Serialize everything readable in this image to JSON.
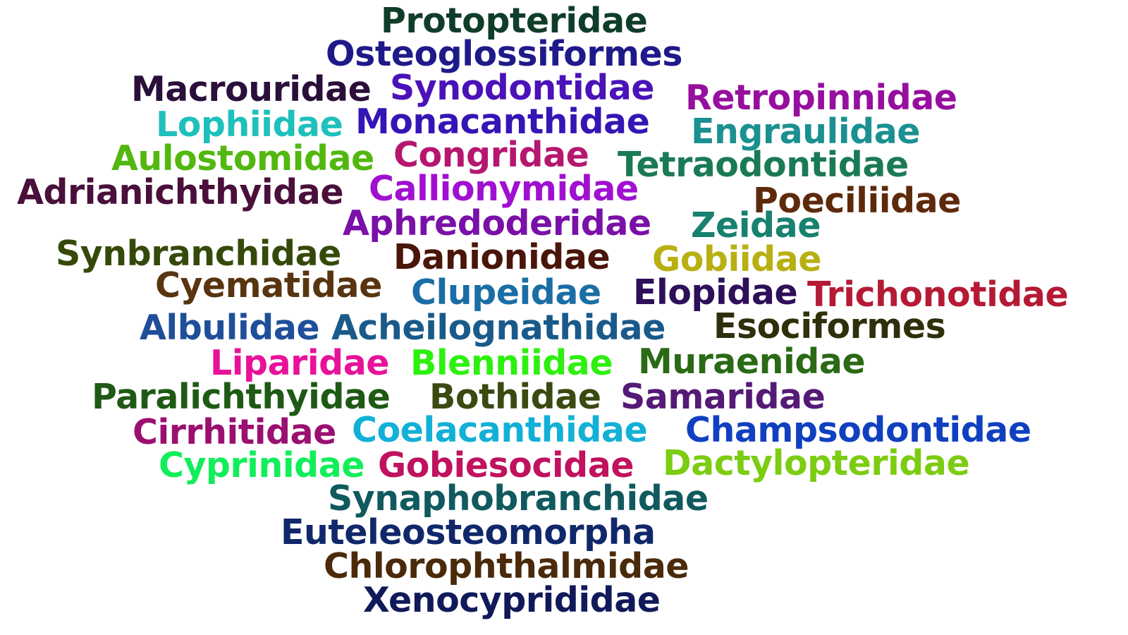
{
  "words": [
    {
      "text": "Protopteridae",
      "color": "#0f3d2a"
    },
    {
      "text": "Osteoglossiformes",
      "color": "#1f1a8a"
    },
    {
      "text": "Macrouridae",
      "color": "#2a0f3a"
    },
    {
      "text": "Synodontidae",
      "color": "#4a12b8"
    },
    {
      "text": "Retropinnidae",
      "color": "#960f9e"
    },
    {
      "text": "Lophiidae",
      "color": "#1ec0bc"
    },
    {
      "text": "Monacanthidae",
      "color": "#3515b5"
    },
    {
      "text": "Engraulidae",
      "color": "#1b9090"
    },
    {
      "text": "Aulostomidae",
      "color": "#52b80f"
    },
    {
      "text": "Congridae",
      "color": "#b5176f"
    },
    {
      "text": "Tetraodontidae",
      "color": "#1a7a55"
    },
    {
      "text": "Adrianichthyidae",
      "color": "#4a0f3a"
    },
    {
      "text": "Callionymidae",
      "color": "#a010d0"
    },
    {
      "text": "Poeciliidae",
      "color": "#5e2a0c"
    },
    {
      "text": "Aphredoderidae",
      "color": "#7a10a8"
    },
    {
      "text": "Zeidae",
      "color": "#18806f"
    },
    {
      "text": "Synbranchidae",
      "color": "#354a0a"
    },
    {
      "text": "Danionidae",
      "color": "#4a150a"
    },
    {
      "text": "Gobiidae",
      "color": "#b8b012"
    },
    {
      "text": "Cyematidae",
      "color": "#583510"
    },
    {
      "text": "Clupeidae",
      "color": "#1a6ea5"
    },
    {
      "text": "Elopidae",
      "color": "#2e0f5a"
    },
    {
      "text": "Trichonotidae",
      "color": "#b51a35"
    },
    {
      "text": "Albulidae",
      "color": "#1f4f9a"
    },
    {
      "text": "Acheilognathidae",
      "color": "#1a5a8a"
    },
    {
      "text": "Esociformes",
      "color": "#2f2f0c"
    },
    {
      "text": "Liparidae",
      "color": "#e8129a"
    },
    {
      "text": "Blenniidae",
      "color": "#2ef00f"
    },
    {
      "text": "Muraenidae",
      "color": "#2a6a15"
    },
    {
      "text": "Paralichthyidae",
      "color": "#1f5a15"
    },
    {
      "text": "Bothidae",
      "color": "#3a4a10"
    },
    {
      "text": "Samaridae",
      "color": "#541a75"
    },
    {
      "text": "Cirrhitidae",
      "color": "#9a1070"
    },
    {
      "text": "Coelacanthidae",
      "color": "#12b0d6"
    },
    {
      "text": "Champsodontidae",
      "color": "#1040c0"
    },
    {
      "text": "Cyprinidae",
      "color": "#12ee5a"
    },
    {
      "text": "Gobiesocidae",
      "color": "#c0125e"
    },
    {
      "text": "Dactylopteridae",
      "color": "#7ccc12"
    },
    {
      "text": "Synaphobranchidae",
      "color": "#105a5e"
    },
    {
      "text": "Euteleosteomorpha",
      "color": "#10286a"
    },
    {
      "text": "Chlorophthalmidae",
      "color": "#4a2a0a"
    },
    {
      "text": "Xenocyprididae",
      "color": "#101a5a"
    }
  ]
}
